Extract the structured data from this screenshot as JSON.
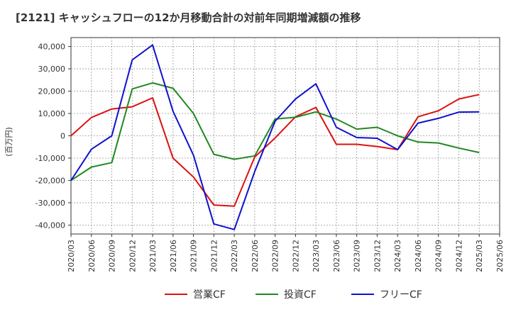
{
  "chart_data": {
    "type": "line",
    "title": "[2121]  キャッシュフローの12か月移動合計の対前年同期増減額の推移",
    "ylabel": "(百万円)",
    "xlabel": "",
    "ylim": [
      -44000,
      44000
    ],
    "yticks": [
      40000,
      30000,
      20000,
      10000,
      0,
      -10000,
      -20000,
      -30000,
      -40000
    ],
    "ytick_labels": [
      "40,000",
      "30,000",
      "20,000",
      "10,000",
      "0",
      "-10,000",
      "-20,000",
      "-30,000",
      "-40,000"
    ],
    "categories": [
      "2020/03",
      "2020/06",
      "2020/09",
      "2020/12",
      "2021/03",
      "2021/06",
      "2021/09",
      "2021/12",
      "2022/03",
      "2022/06",
      "2022/09",
      "2022/12",
      "2023/03",
      "2023/06",
      "2023/09",
      "2023/12",
      "2024/03",
      "2024/06",
      "2024/09",
      "2024/12",
      "2025/03",
      "2025/06"
    ],
    "grid": true,
    "legend_position": "bottom",
    "series": [
      {
        "name": "営業CF",
        "color": "#dd1111",
        "values": [
          0,
          8200,
          12000,
          13000,
          17000,
          -10000,
          -18500,
          -31000,
          -31500,
          -9500,
          -1000,
          8500,
          12700,
          -3800,
          -3800,
          -4800,
          -6200,
          8500,
          11200,
          16500,
          18500,
          null
        ]
      },
      {
        "name": "投資CF",
        "color": "#228822",
        "values": [
          -20000,
          -14000,
          -12000,
          21000,
          23700,
          21300,
          10000,
          -8300,
          -10500,
          -9000,
          7500,
          8300,
          10700,
          7500,
          3000,
          3800,
          0,
          -2800,
          -3200,
          -5500,
          -7500,
          null
        ]
      },
      {
        "name": "フリーCF",
        "color": "#1111cc",
        "values": [
          -20000,
          -6000,
          0,
          34000,
          40700,
          11000,
          -8700,
          -39500,
          -42000,
          -16000,
          6500,
          16500,
          23300,
          3800,
          -800,
          -1100,
          -6200,
          5700,
          7800,
          10600,
          10700,
          null
        ]
      }
    ]
  }
}
